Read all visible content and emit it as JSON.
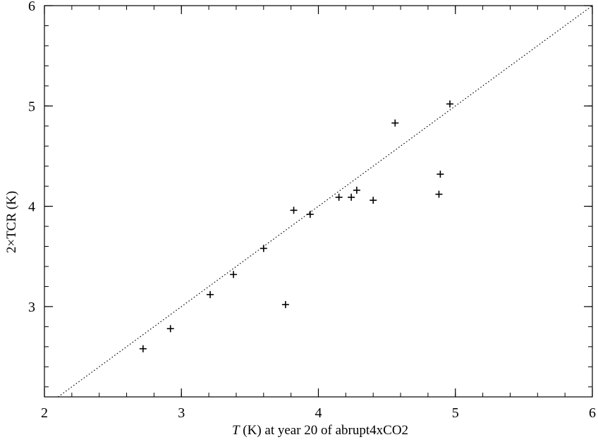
{
  "chart_data": {
    "type": "scatter",
    "title": "",
    "xlabel_italic": "T",
    "xlabel_rest": " (K) at year 20 of abrupt4xCO2",
    "ylabel": "2×TCR (K)",
    "xlim": [
      2,
      6
    ],
    "ylim": [
      2.1,
      6
    ],
    "xticks": [
      2,
      3,
      4,
      5,
      6
    ],
    "yticks": [
      3,
      4,
      5,
      6
    ],
    "xtick_labels": [
      "2",
      "3",
      "4",
      "5",
      "6"
    ],
    "ytick_labels": [
      "3",
      "4",
      "5",
      "6"
    ],
    "grid": false,
    "marker": "+",
    "reference_line": {
      "style": "dotted",
      "from": [
        2.1,
        2.1
      ],
      "to": [
        6,
        6
      ]
    },
    "points": [
      {
        "x": 2.72,
        "y": 2.58
      },
      {
        "x": 2.92,
        "y": 2.78
      },
      {
        "x": 3.21,
        "y": 3.12
      },
      {
        "x": 3.38,
        "y": 3.32
      },
      {
        "x": 3.6,
        "y": 3.58
      },
      {
        "x": 3.76,
        "y": 3.02
      },
      {
        "x": 3.82,
        "y": 3.96
      },
      {
        "x": 3.94,
        "y": 3.92
      },
      {
        "x": 4.15,
        "y": 4.09
      },
      {
        "x": 4.24,
        "y": 4.09
      },
      {
        "x": 4.28,
        "y": 4.16
      },
      {
        "x": 4.4,
        "y": 4.06
      },
      {
        "x": 4.56,
        "y": 4.83
      },
      {
        "x": 4.88,
        "y": 4.12
      },
      {
        "x": 4.89,
        "y": 4.32
      },
      {
        "x": 4.96,
        "y": 5.02
      }
    ]
  }
}
